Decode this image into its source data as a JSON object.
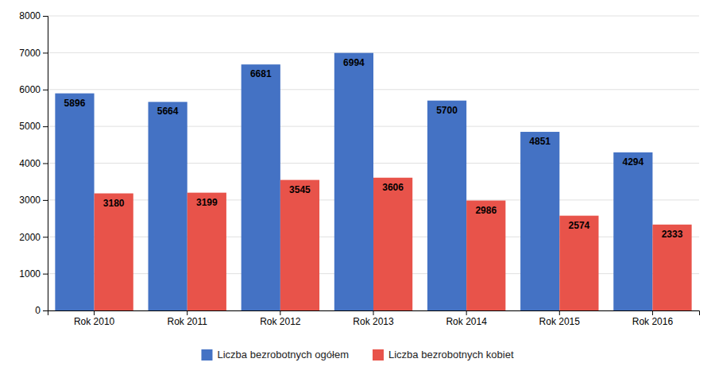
{
  "chart_data": {
    "type": "bar",
    "categories": [
      "Rok 2010",
      "Rok 2011",
      "Rok 2012",
      "Rok 2013",
      "Rok 2014",
      "Rok 2015",
      "Rok 2016"
    ],
    "series": [
      {
        "name": "Liczba bezrobotnych ogółem",
        "color": "#4472C4",
        "values": [
          5896,
          5664,
          6681,
          6994,
          5700,
          4851,
          4294
        ]
      },
      {
        "name": "Liczba bezrobotnych kobiet",
        "color": "#E8534A",
        "values": [
          3180,
          3199,
          3545,
          3606,
          2986,
          2574,
          2333
        ]
      }
    ],
    "ylim": [
      0,
      8000
    ],
    "yticks": [
      0,
      1000,
      2000,
      3000,
      4000,
      5000,
      6000,
      7000,
      8000
    ],
    "grid": true,
    "legend": "bottom",
    "data_labels": true
  }
}
